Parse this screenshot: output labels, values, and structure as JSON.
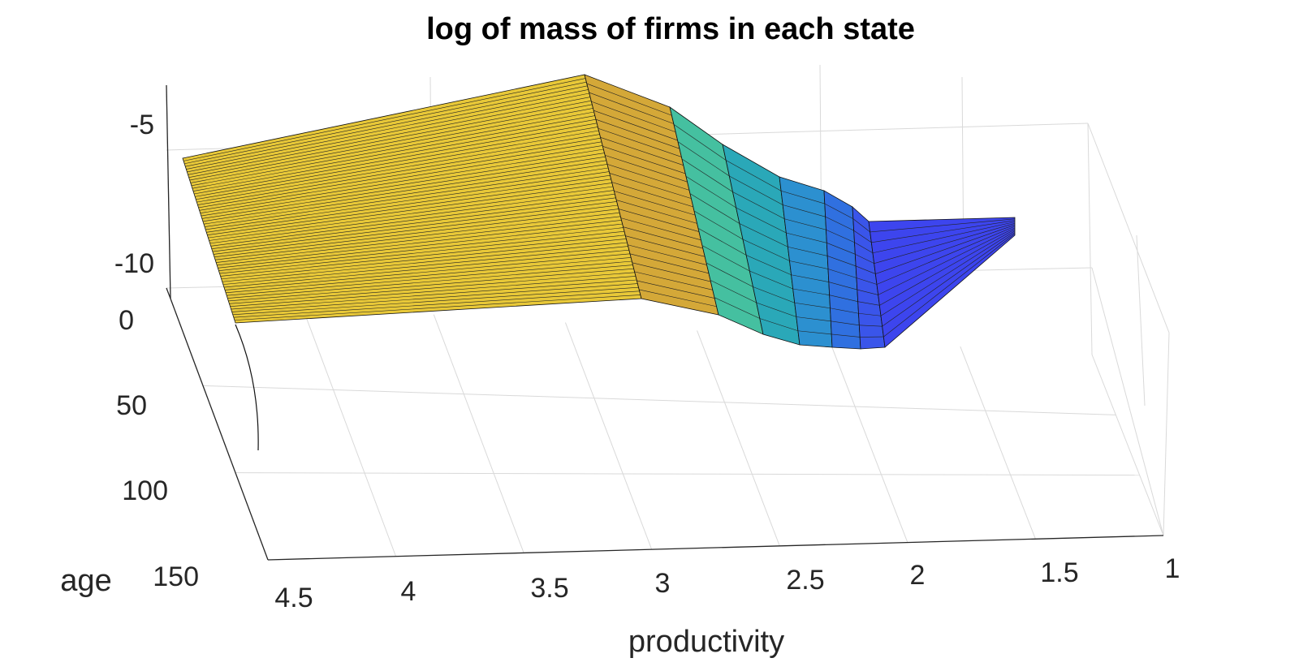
{
  "chart_data": {
    "type": "surface",
    "title": "log of mass of firms in each state",
    "xlabel": "productivity",
    "ylabel": "age",
    "zlabel": "",
    "x_ticks": [
      "4.5",
      "4",
      "3.5",
      "3",
      "2.5",
      "2",
      "1.5",
      "1"
    ],
    "y_ticks": [
      "0",
      "50",
      "100",
      "150"
    ],
    "z_ticks": [
      "-5",
      "-10"
    ],
    "xlim": [
      1,
      4.5
    ],
    "ylim": [
      0,
      150
    ],
    "grid": true,
    "colormap": "parula",
    "surface_colors": {
      "high": "#f0c82c",
      "mid": "#2ab0a8",
      "low": "#3d3df0"
    },
    "ridge_profile": {
      "productivity": [
        4.6,
        3.6,
        3.25,
        2.95,
        2.7,
        2.5,
        2.3,
        2.15,
        2.0,
        1.85,
        1.5
      ],
      "log_mass": [
        -6.2,
        -3.9,
        -4.6,
        -5.5,
        -6.1,
        -6.8,
        -7.1,
        -7.6,
        -8.2,
        -8.2,
        -8.2
      ]
    }
  }
}
